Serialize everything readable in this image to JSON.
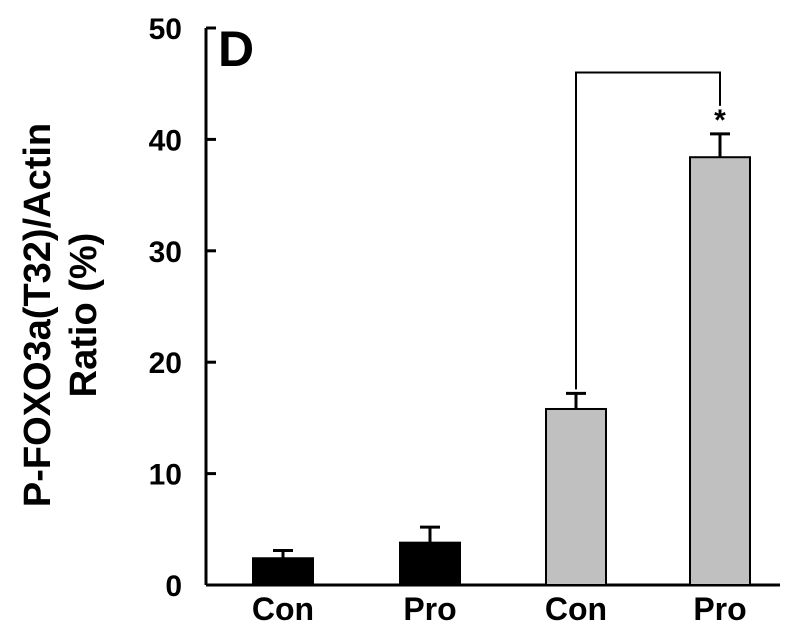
{
  "chart_data": {
    "type": "bar",
    "panel_label": "D",
    "ylabel_line1": "P-FOXO3a(T32)/Actin",
    "ylabel_line2": "Ratio (%)",
    "xlabel": "",
    "ylim": [
      0,
      50
    ],
    "yticks": [
      0,
      10,
      20,
      30,
      40,
      50
    ],
    "grid": false,
    "categories": [
      "Con",
      "Pro",
      "Con",
      "Pro"
    ],
    "values": [
      2.4,
      3.8,
      15.8,
      38.4
    ],
    "errors": [
      0.7,
      1.4,
      1.4,
      2.1
    ],
    "colors": [
      "#000000",
      "#000000",
      "#c0c0c0",
      "#c0c0c0"
    ],
    "significance": {
      "from": 2,
      "to": 3,
      "bracket_top": 46,
      "label": "*"
    }
  }
}
